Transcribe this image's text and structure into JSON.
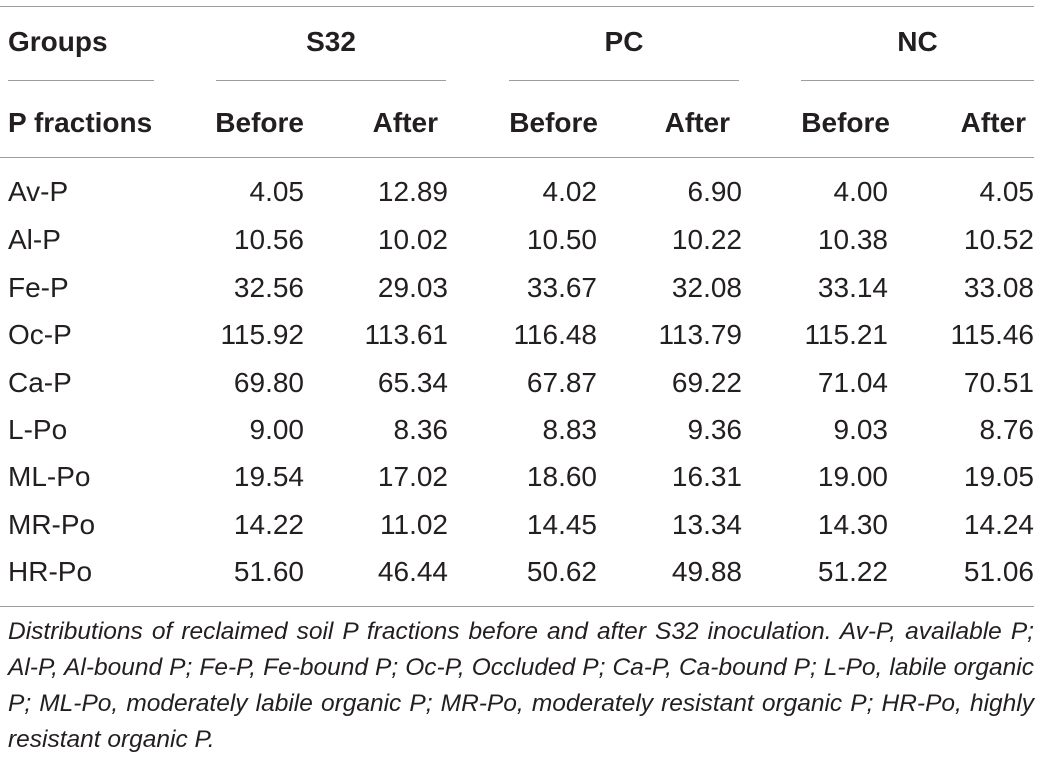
{
  "table": {
    "groups_label": "Groups",
    "fractions_label": "P fractions",
    "groups": [
      "S32",
      "PC",
      "NC"
    ],
    "subheaders": [
      "Before",
      "After",
      "Before",
      "After",
      "Before",
      "After"
    ],
    "rows": [
      {
        "label": "Av-P",
        "values": [
          "4.05",
          "12.89",
          "4.02",
          "6.90",
          "4.00",
          "4.05"
        ]
      },
      {
        "label": "Al-P",
        "values": [
          "10.56",
          "10.02",
          "10.50",
          "10.22",
          "10.38",
          "10.52"
        ]
      },
      {
        "label": "Fe-P",
        "values": [
          "32.56",
          "29.03",
          "33.67",
          "32.08",
          "33.14",
          "33.08"
        ]
      },
      {
        "label": "Oc-P",
        "values": [
          "115.92",
          "113.61",
          "116.48",
          "113.79",
          "115.21",
          "115.46"
        ]
      },
      {
        "label": "Ca-P",
        "values": [
          "69.80",
          "65.34",
          "67.87",
          "69.22",
          "71.04",
          "70.51"
        ]
      },
      {
        "label": "L-Po",
        "values": [
          "9.00",
          "8.36",
          "8.83",
          "9.36",
          "9.03",
          "8.76"
        ]
      },
      {
        "label": "ML-Po",
        "values": [
          "19.54",
          "17.02",
          "18.60",
          "16.31",
          "19.00",
          "19.05"
        ]
      },
      {
        "label": "MR-Po",
        "values": [
          "14.22",
          "11.02",
          "14.45",
          "13.34",
          "14.30",
          "14.24"
        ]
      },
      {
        "label": "HR-Po",
        "values": [
          "51.60",
          "46.44",
          "50.62",
          "49.88",
          "51.22",
          "51.06"
        ]
      }
    ]
  },
  "caption": "Distributions of reclaimed soil P fractions before and after S32 inoculation. Av-P, available P; Al-P, Al-bound P; Fe-P, Fe-bound P; Oc-P, Occluded P; Ca-P, Ca-bound P; L-Po, labile organic P; ML-Po, moderately labile organic P; MR-Po, moderately resistant organic P; HR-Po, highly resistant organic P."
}
